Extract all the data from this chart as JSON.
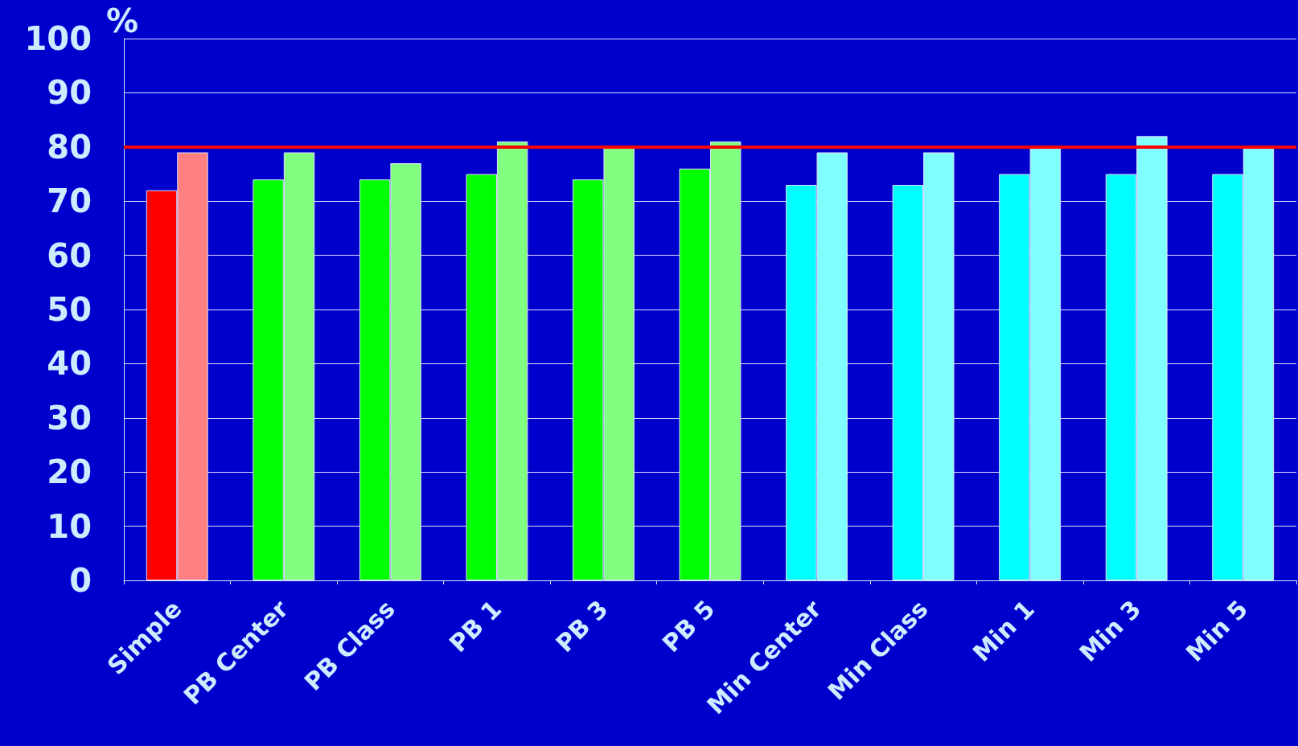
{
  "chart_data": {
    "type": "bar",
    "ylabel": "%",
    "categories": [
      "Simple",
      "PB Center",
      "PB Class",
      "PB 1",
      "PB 3",
      "PB 5",
      "Min Center",
      "Min Class",
      "Min 1",
      "Min 3",
      "Min 5"
    ],
    "series": [
      {
        "colors": [
          "#ff0000",
          "#00ff00",
          "#00ff00",
          "#00ff00",
          "#00ff00",
          "#00ff00",
          "#00ffff",
          "#00ffff",
          "#00ffff",
          "#00ffff",
          "#00ffff"
        ],
        "values": [
          72,
          74,
          74,
          75,
          74,
          76,
          73,
          73,
          75,
          75,
          75
        ]
      },
      {
        "colors": [
          "#ff8080",
          "#80ff80",
          "#80ff80",
          "#80ff80",
          "#80ff80",
          "#80ff80",
          "#80ffff",
          "#80ffff",
          "#80ffff",
          "#80ffff",
          "#80ffff"
        ],
        "values": [
          79,
          79,
          77,
          81,
          80,
          81,
          79,
          79,
          80,
          82,
          80
        ]
      }
    ],
    "ylim": [
      0,
      100
    ],
    "yticks": [
      0,
      10,
      20,
      30,
      40,
      50,
      60,
      70,
      80,
      90,
      100
    ],
    "grid": "y",
    "ref_lines": [
      {
        "axis": "y",
        "value": 80,
        "color": "#ff0000"
      }
    ]
  }
}
